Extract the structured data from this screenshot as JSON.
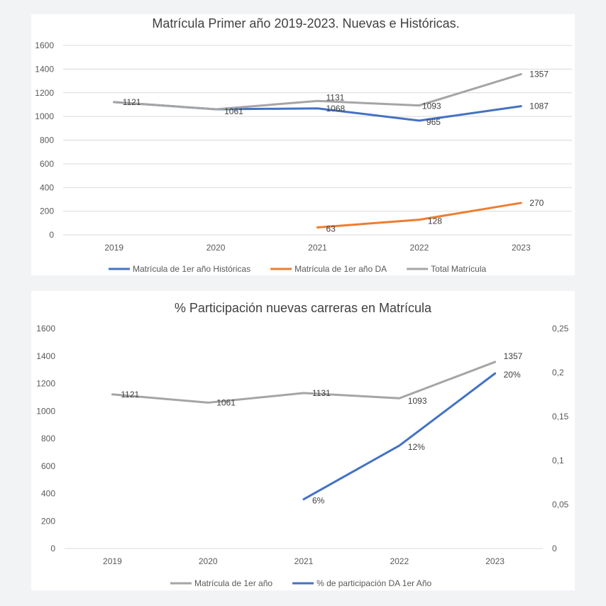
{
  "chart_data": [
    {
      "type": "line",
      "title": "Matrícula Primer año 2019-2023. Nuevas e Históricas.",
      "categories": [
        "2019",
        "2020",
        "2021",
        "2022",
        "2023"
      ],
      "ylim": [
        0,
        1600
      ],
      "yticks": [
        "0",
        "200",
        "400",
        "600",
        "800",
        "1000",
        "1200",
        "1400",
        "1600"
      ],
      "grid": true,
      "legend_position": "bottom",
      "series": [
        {
          "name": "Matrícula de 1er año Históricas",
          "color": "#4472c4",
          "values": [
            1121,
            1061,
            1068,
            965,
            1087
          ],
          "labels": [
            "",
            "",
            "1068",
            "965",
            "1087"
          ]
        },
        {
          "name": "Matrícula de 1er año DA",
          "color": "#ed7d31",
          "values": [
            null,
            null,
            63,
            128,
            270
          ],
          "labels": [
            "",
            "",
            "63",
            "128",
            "270"
          ]
        },
        {
          "name": "Total Matrícula",
          "color": "#a5a5a5",
          "values": [
            1121,
            1061,
            1131,
            1093,
            1357
          ],
          "labels": [
            "1121",
            "1061",
            "1131",
            "1093",
            "1357"
          ]
        }
      ]
    },
    {
      "type": "line",
      "title": "% Participación nuevas carreras en Matrícula",
      "categories": [
        "2019",
        "2020",
        "2021",
        "2022",
        "2023"
      ],
      "ylim": [
        0,
        1600
      ],
      "yticks": [
        "0",
        "200",
        "400",
        "600",
        "800",
        "1000",
        "1200",
        "1400",
        "1600"
      ],
      "y2lim": [
        0,
        0.25
      ],
      "y2ticks": [
        "0",
        "0,05",
        "0,1",
        "0,15",
        "0,2",
        "0,25"
      ],
      "grid": false,
      "legend_position": "bottom",
      "series": [
        {
          "name": "Matrícula de 1er año",
          "color": "#a5a5a5",
          "axis": "left",
          "values": [
            1121,
            1061,
            1131,
            1093,
            1357
          ],
          "labels": [
            "1121",
            "1061",
            "1131",
            "1093",
            "1357"
          ]
        },
        {
          "name": "% de participación DA 1er Año",
          "color": "#4472c4",
          "axis": "right",
          "values": [
            null,
            null,
            0.056,
            0.117,
            0.199
          ],
          "labels": [
            "",
            "",
            "6%",
            "12%",
            "20%"
          ]
        }
      ]
    }
  ]
}
